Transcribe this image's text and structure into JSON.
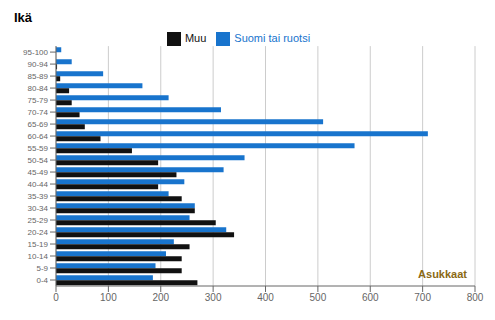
{
  "chart_data": {
    "type": "bar",
    "orientation": "horizontal",
    "title": "Ikä",
    "annotation": "Asukkaat",
    "categories": [
      "0-4",
      "5-9",
      "10-14",
      "15-19",
      "20-24",
      "25-29",
      "30-34",
      "35-39",
      "40-44",
      "45-49",
      "50-54",
      "55-59",
      "60-64",
      "65-69",
      "70-74",
      "75-79",
      "80-84",
      "85-89",
      "90-94",
      "95-100"
    ],
    "series": [
      {
        "name": "Suomi tai ruotsi",
        "color": "#1874CD",
        "values": [
          185,
          190,
          210,
          225,
          325,
          255,
          265,
          215,
          245,
          320,
          360,
          570,
          710,
          510,
          315,
          215,
          165,
          90,
          30,
          10
        ]
      },
      {
        "name": "Muu",
        "color": "#111111",
        "values": [
          270,
          240,
          240,
          255,
          340,
          305,
          265,
          240,
          195,
          230,
          195,
          145,
          85,
          55,
          45,
          30,
          25,
          8,
          2,
          0
        ]
      }
    ],
    "xlim": [
      0,
      800
    ],
    "xticks": [
      0,
      100,
      200,
      300,
      400,
      500,
      600,
      700,
      800
    ],
    "grid": true,
    "legend": "top"
  }
}
